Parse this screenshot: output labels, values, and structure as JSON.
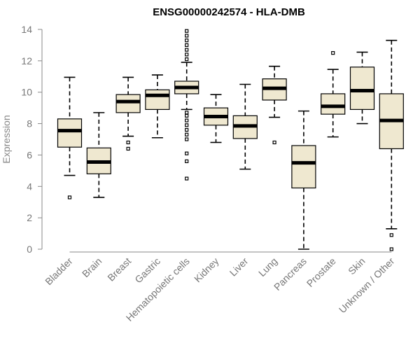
{
  "chart_data": {
    "type": "boxplot",
    "title": "ENSG00000242574 - HLA-DMB",
    "xlabel": "",
    "ylabel": "Expression",
    "ylim": [
      0,
      14
    ],
    "yticks": [
      0,
      2,
      4,
      6,
      8,
      10,
      12,
      14
    ],
    "categories": [
      "Bladder",
      "Brain",
      "Breast",
      "Gastric",
      "Hematopoietic cells",
      "Kidney",
      "Liver",
      "Lung",
      "Pancreas",
      "Prostate",
      "Skin",
      "Unknown / Other"
    ],
    "boxes": [
      {
        "min": 4.7,
        "q1": 6.5,
        "median": 7.55,
        "q3": 8.3,
        "max": 10.95,
        "outliers": [
          3.3
        ]
      },
      {
        "min": 3.3,
        "q1": 4.8,
        "median": 5.55,
        "q3": 6.45,
        "max": 8.7,
        "outliers": []
      },
      {
        "min": 7.2,
        "q1": 8.7,
        "median": 9.4,
        "q3": 9.85,
        "max": 10.95,
        "outliers": [
          6.4,
          6.8
        ]
      },
      {
        "min": 7.1,
        "q1": 8.9,
        "median": 9.8,
        "q3": 10.15,
        "max": 11.1,
        "outliers": []
      },
      {
        "min": 8.9,
        "q1": 9.9,
        "median": 10.3,
        "q3": 10.7,
        "max": 11.9,
        "outliers": [
          4.5,
          5.6,
          6.1,
          7.0,
          7.3,
          7.6,
          7.9,
          8.2,
          8.5,
          8.7,
          12.1,
          12.4,
          12.7,
          13.0,
          13.3,
          13.6,
          13.9
        ]
      },
      {
        "min": 6.8,
        "q1": 7.9,
        "median": 8.45,
        "q3": 9.0,
        "max": 9.85,
        "outliers": []
      },
      {
        "min": 5.1,
        "q1": 7.05,
        "median": 7.85,
        "q3": 8.5,
        "max": 10.5,
        "outliers": []
      },
      {
        "min": 8.4,
        "q1": 9.5,
        "median": 10.25,
        "q3": 10.85,
        "max": 11.65,
        "outliers": [
          6.8
        ]
      },
      {
        "min": 0.0,
        "q1": 3.9,
        "median": 5.5,
        "q3": 6.6,
        "max": 8.8,
        "outliers": []
      },
      {
        "min": 7.15,
        "q1": 8.6,
        "median": 9.1,
        "q3": 9.9,
        "max": 11.45,
        "outliers": [
          12.5
        ]
      },
      {
        "min": 8.0,
        "q1": 8.9,
        "median": 10.1,
        "q3": 11.6,
        "max": 12.55,
        "outliers": []
      },
      {
        "min": 1.3,
        "q1": 6.4,
        "median": 8.2,
        "q3": 9.9,
        "max": 13.3,
        "outliers": [
          0.0,
          0.9
        ]
      }
    ]
  }
}
